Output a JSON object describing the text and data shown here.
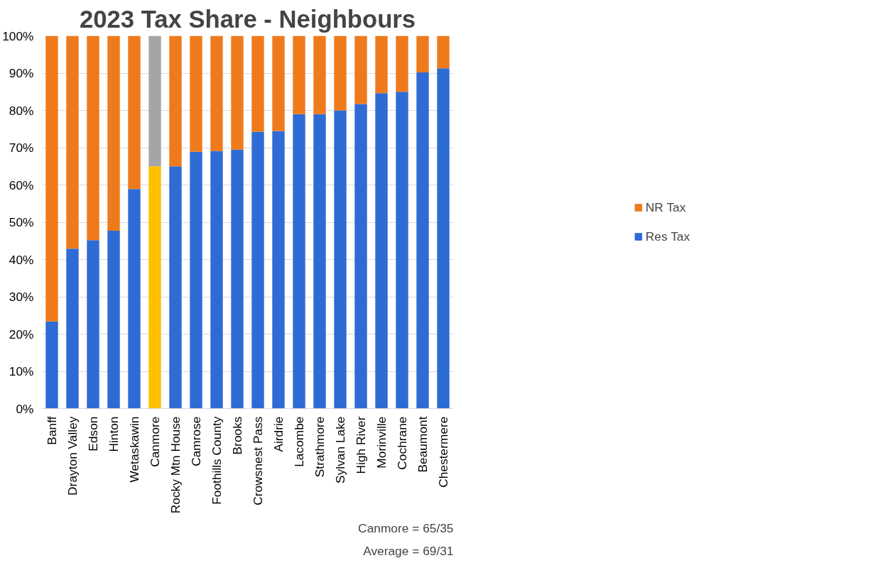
{
  "chart_data": {
    "type": "bar",
    "title": "2023 Tax Share - Neighbours",
    "stacked": true,
    "categories": [
      "Banff",
      "Drayton Valley",
      "Edson",
      "Hinton",
      "Wetaskawin",
      "Canmore",
      "Rocky Mtn House",
      "Camrose",
      "Foothills County",
      "Brooks",
      "Crowsnest Pass",
      "Airdrie",
      "Lacombe",
      "Strathmore",
      "Sylvan Lake",
      "High River",
      "Morinville",
      "Cochrane",
      "Beaumont",
      "Chestermere"
    ],
    "series": [
      {
        "name": "Res Tax",
        "color": "#2f6bd4",
        "colors": [
          "#2f6bd4",
          "#2f6bd4",
          "#2f6bd4",
          "#2f6bd4",
          "#2f6bd4",
          "#ffc000",
          "#2f6bd4",
          "#2f6bd4",
          "#2f6bd4",
          "#2f6bd4",
          "#2f6bd4",
          "#2f6bd4",
          "#2f6bd4",
          "#2f6bd4",
          "#2f6bd4",
          "#2f6bd4",
          "#2f6bd4",
          "#2f6bd4",
          "#2f6bd4",
          "#2f6bd4"
        ],
        "values": [
          23.4,
          42.9,
          45.2,
          47.7,
          58.9,
          65,
          65,
          68.9,
          69.1,
          69.5,
          74.3,
          74.5,
          79,
          79,
          80,
          81.7,
          84.6,
          85,
          90.2,
          91.3
        ]
      },
      {
        "name": "NR Tax",
        "color": "#ef7a1c",
        "colors": [
          "#ef7a1c",
          "#ef7a1c",
          "#ef7a1c",
          "#ef7a1c",
          "#ef7a1c",
          "#a5a5a5",
          "#ef7a1c",
          "#ef7a1c",
          "#ef7a1c",
          "#ef7a1c",
          "#ef7a1c",
          "#ef7a1c",
          "#ef7a1c",
          "#ef7a1c",
          "#ef7a1c",
          "#ef7a1c",
          "#ef7a1c",
          "#ef7a1c",
          "#ef7a1c",
          "#ef7a1c"
        ],
        "values": [
          76.6,
          57.1,
          54.8,
          52.3,
          41.1,
          35,
          35,
          31.1,
          30.9,
          30.5,
          25.7,
          25.5,
          21,
          21,
          20,
          18.3,
          15.4,
          15,
          9.8,
          8.7
        ]
      }
    ],
    "ylim": [
      0,
      100
    ],
    "yticks": [
      {
        "value": 0,
        "label": "0%"
      },
      {
        "value": 10,
        "label": "10%"
      },
      {
        "value": 20,
        "label": "20%"
      },
      {
        "value": 30,
        "label": "30%"
      },
      {
        "value": 40,
        "label": "40%"
      },
      {
        "value": 50,
        "label": "50%"
      },
      {
        "value": 60,
        "label": "60%"
      },
      {
        "value": 70,
        "label": "70%"
      },
      {
        "value": 80,
        "label": "80%"
      },
      {
        "value": 90,
        "label": "90%"
      },
      {
        "value": 100,
        "label": "100%"
      }
    ],
    "grid": "y",
    "legend": "right",
    "annotations": [
      "Canmore = 65/35",
      "Average = 69/31"
    ]
  }
}
